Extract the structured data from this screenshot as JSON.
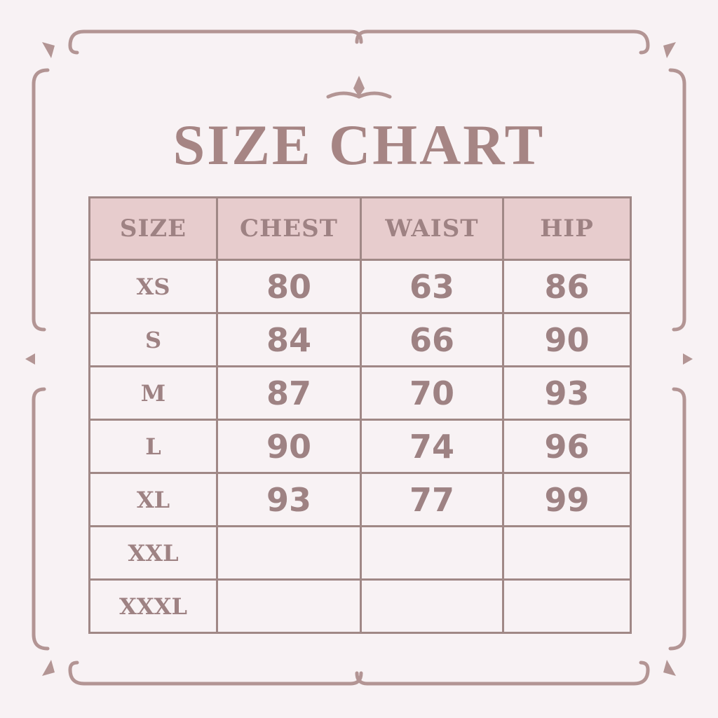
{
  "title": "SIZE CHART",
  "colors": {
    "background": "#f8f2f4",
    "text": "#a08585",
    "header_fill": "#e7cccd",
    "border": "#a08886"
  },
  "chart_data": {
    "type": "table",
    "title": "SIZE CHART",
    "columns": [
      "SIZE",
      "CHEST",
      "WAIST",
      "HIP"
    ],
    "rows": [
      [
        "XS",
        "80",
        "63",
        "86"
      ],
      [
        "S",
        "84",
        "66",
        "90"
      ],
      [
        "M",
        "87",
        "70",
        "93"
      ],
      [
        "L",
        "90",
        "74",
        "96"
      ],
      [
        "XL",
        "93",
        "77",
        "99"
      ],
      [
        "XXL",
        "",
        "",
        ""
      ],
      [
        "XXXL",
        "",
        "",
        ""
      ]
    ]
  }
}
